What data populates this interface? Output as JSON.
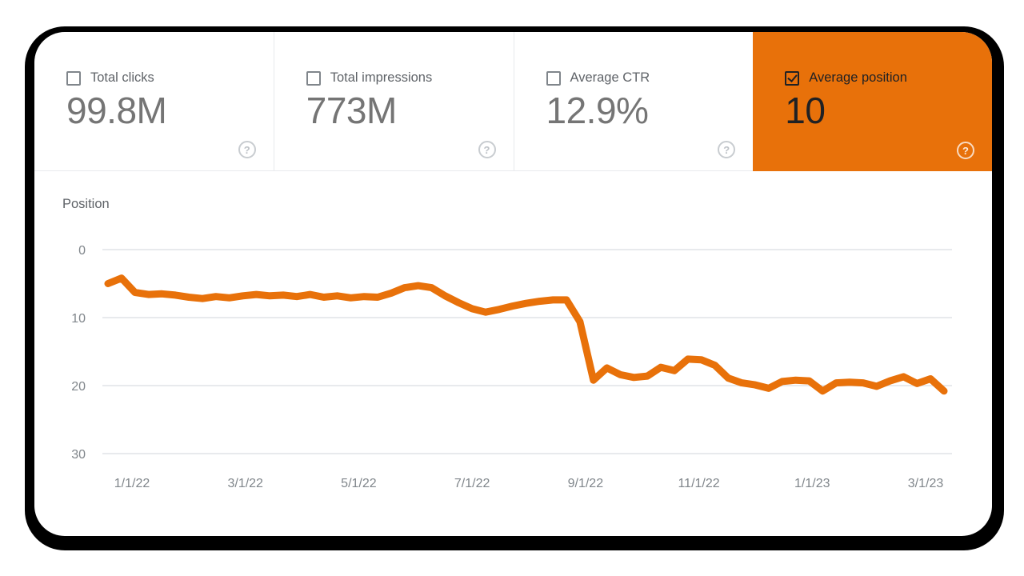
{
  "cards": [
    {
      "label": "Total clicks",
      "value": "99.8M",
      "checked": false
    },
    {
      "label": "Total impressions",
      "value": "773M",
      "checked": false
    },
    {
      "label": "Average CTR",
      "value": "12.9%",
      "checked": false
    },
    {
      "label": "Average position",
      "value": "10",
      "checked": true
    }
  ],
  "help_glyph": "?",
  "colors": {
    "accent_orange": "#E8710A",
    "selected_text": "#202124",
    "value_gray": "#757575",
    "label_gray": "#5F6368",
    "axis_gray": "#80868B",
    "grid_gray": "#E8EAED"
  },
  "chart_data": {
    "type": "line",
    "title": "Position",
    "ylabel": "Position",
    "y_axis_inverted": true,
    "ylim": [
      0,
      30
    ],
    "y_ticks": [
      0,
      10,
      20,
      30
    ],
    "x_ticks": [
      "1/1/22",
      "3/1/22",
      "5/1/22",
      "7/1/22",
      "9/1/22",
      "11/1/22",
      "1/1/23",
      "3/1/23"
    ],
    "grid": true,
    "legend": "none",
    "x_unit": "week",
    "series": [
      {
        "name": "Average position",
        "color": "#E8710A",
        "values": [
          5.0,
          4.2,
          6.3,
          6.6,
          6.5,
          6.7,
          7.0,
          7.2,
          6.9,
          7.1,
          6.8,
          6.6,
          6.8,
          6.7,
          6.9,
          6.6,
          7.0,
          6.8,
          7.1,
          6.9,
          7.0,
          6.4,
          5.6,
          5.3,
          5.6,
          6.8,
          7.8,
          8.7,
          9.2,
          8.8,
          8.3,
          7.9,
          7.6,
          7.4,
          7.4,
          10.6,
          19.2,
          17.4,
          18.4,
          18.8,
          18.6,
          17.3,
          17.8,
          16.1,
          16.2,
          17.0,
          18.9,
          19.6,
          19.9,
          20.4,
          19.4,
          19.2,
          19.3,
          20.8,
          19.6,
          19.5,
          19.6,
          20.1,
          19.3,
          18.7,
          19.7,
          19.0,
          20.8
        ]
      }
    ]
  }
}
